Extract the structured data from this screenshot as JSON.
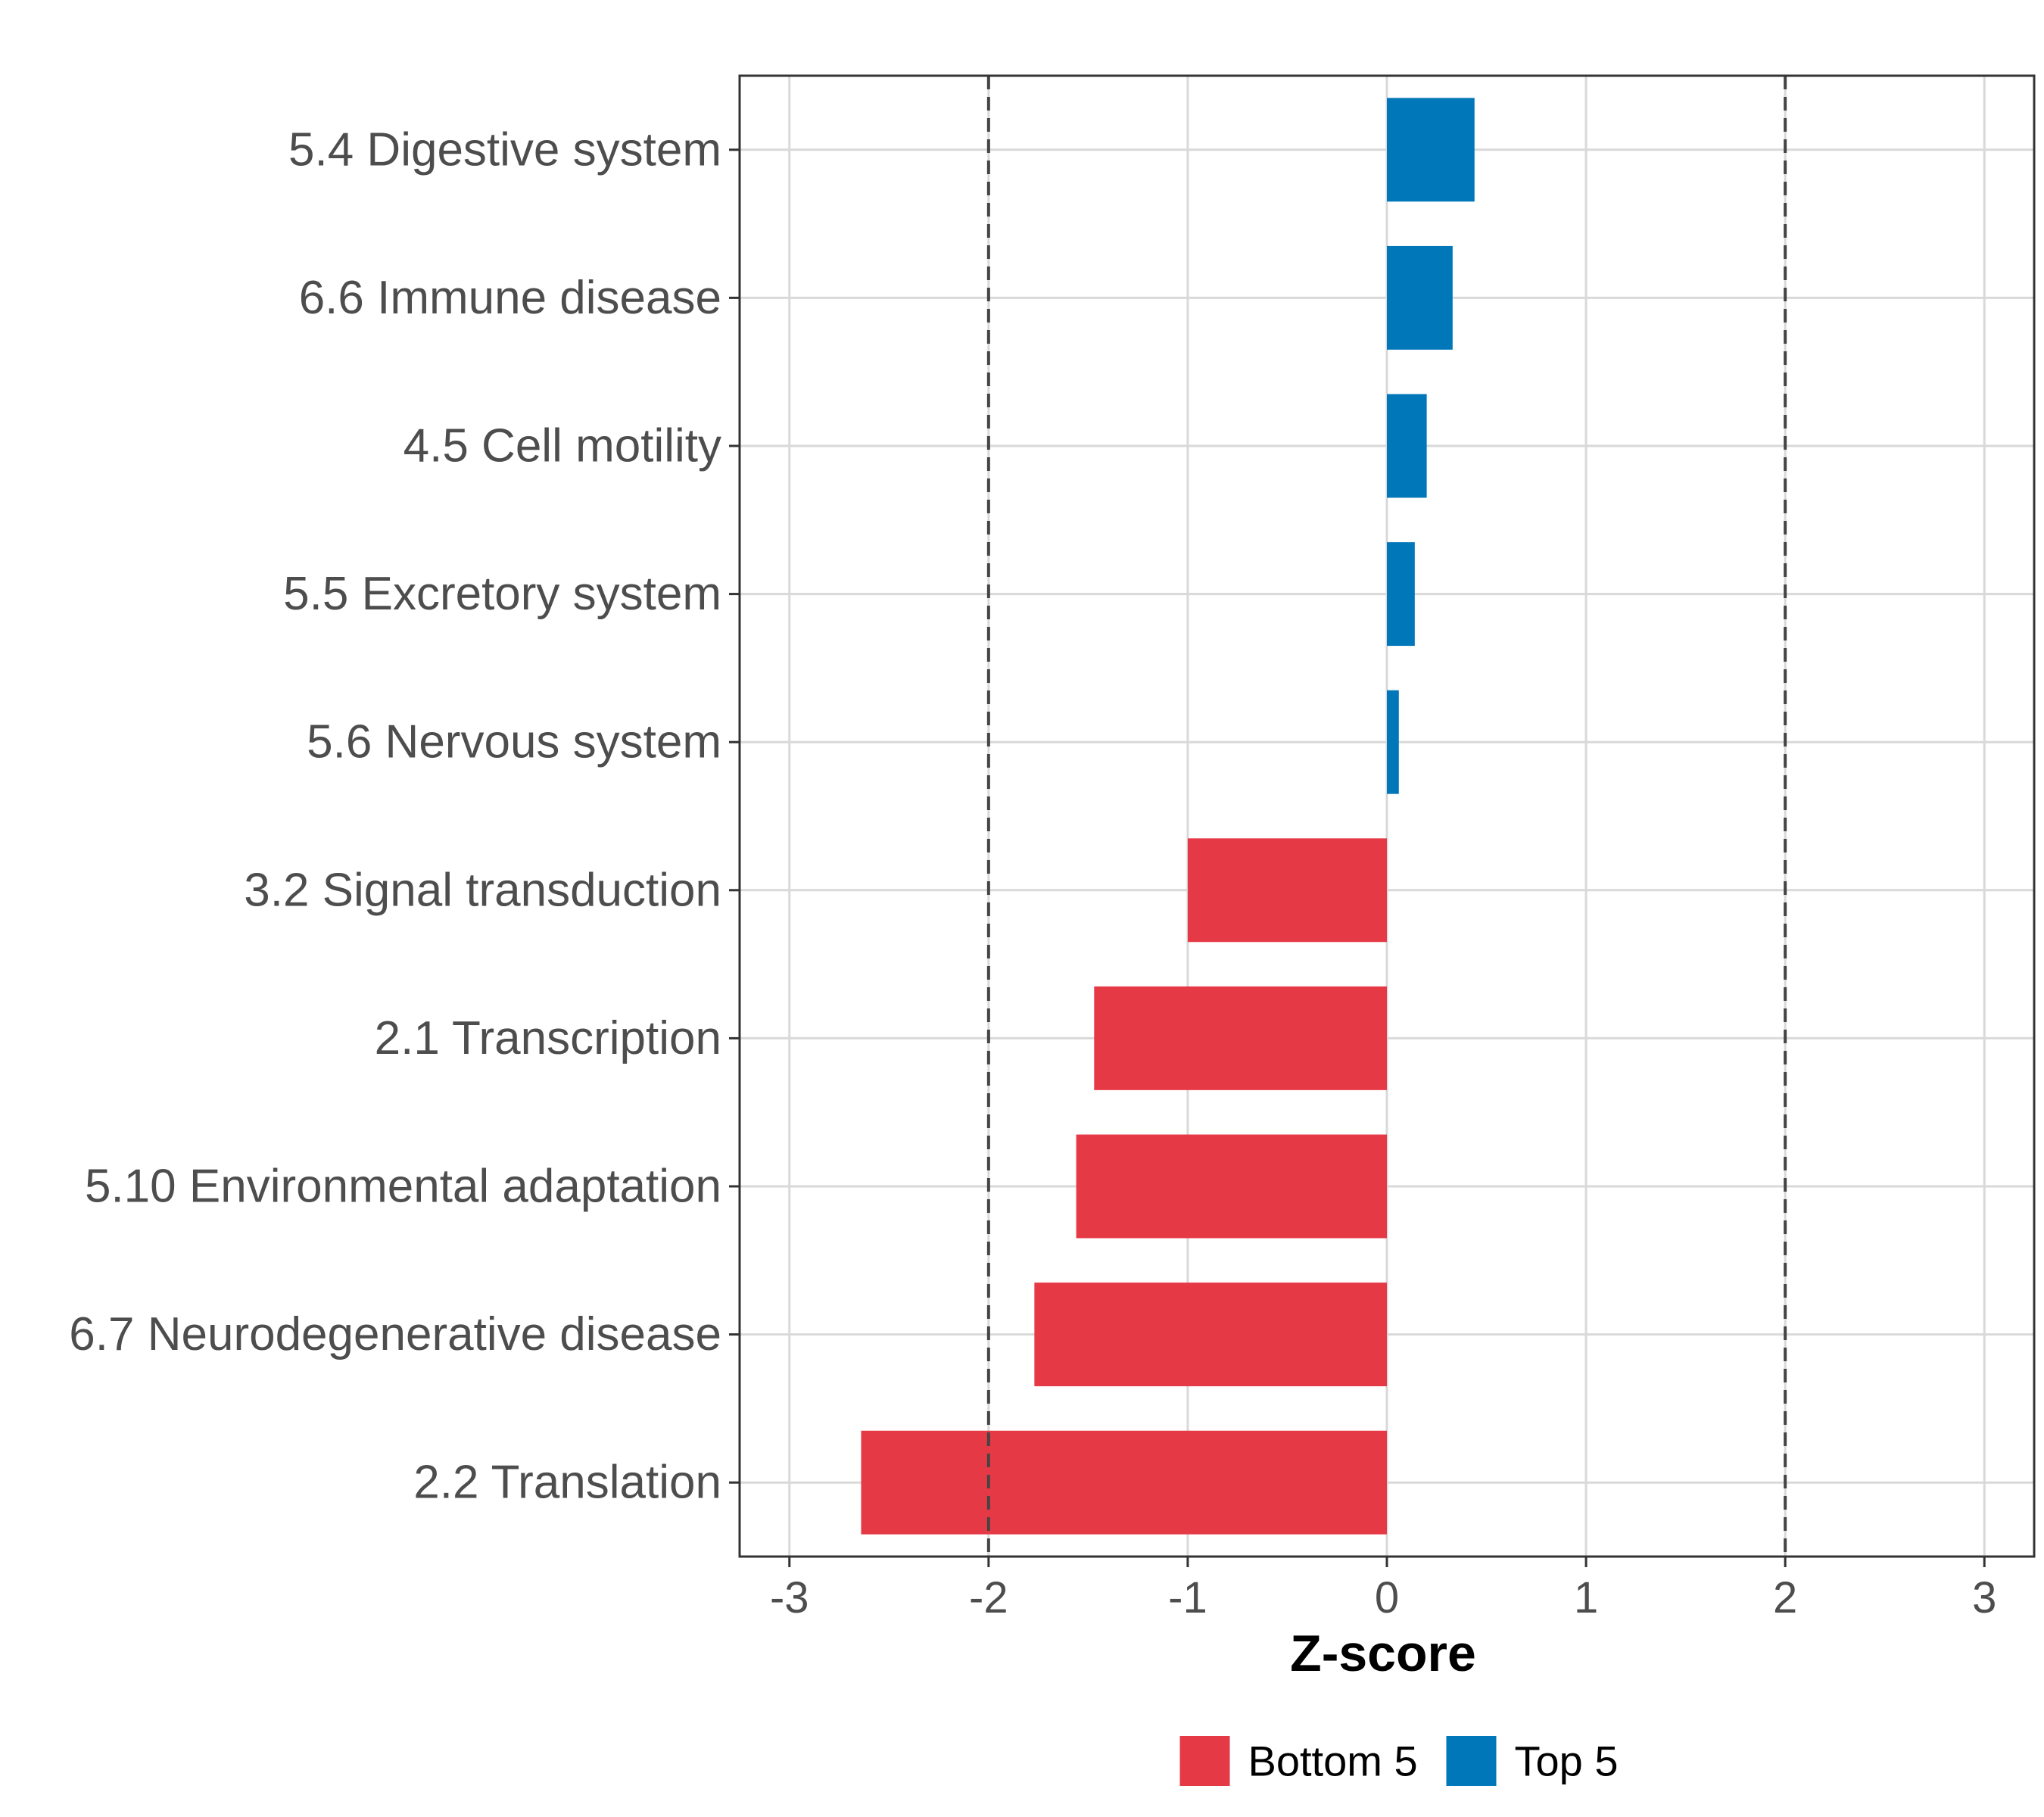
{
  "chart_data": {
    "type": "bar",
    "orientation": "horizontal",
    "title": "",
    "xlabel": "Z-score",
    "ylabel": "",
    "xlim": [
      -3.25,
      3.25
    ],
    "xticks": [
      -3,
      -2,
      -1,
      0,
      1,
      2,
      3
    ],
    "xtick_labels": [
      "-3",
      "-2",
      "-1",
      "0",
      "1",
      "2",
      "3"
    ],
    "reference_lines": [
      -2,
      2
    ],
    "grid": true,
    "legend_position": "bottom",
    "categories": [
      "5.4 Digestive system",
      "6.6 Immune disease",
      "4.5 Cell motility",
      "5.5 Excretory system",
      "5.6 Nervous system",
      "3.2 Signal transduction",
      "2.1 Transcription",
      "5.10 Environmental adaptation",
      "6.7 Neurodegenerative disease",
      "2.2 Translation"
    ],
    "values": [
      0.44,
      0.33,
      0.2,
      0.14,
      0.06,
      -1.0,
      -1.47,
      -1.56,
      -1.77,
      -2.64
    ],
    "groups": [
      "Top 5",
      "Top 5",
      "Top 5",
      "Top 5",
      "Top 5",
      "Bottom 5",
      "Bottom 5",
      "Bottom 5",
      "Bottom 5",
      "Bottom 5"
    ],
    "legend": [
      {
        "label": "Bottom 5",
        "color": "#e63946"
      },
      {
        "label": "Top 5",
        "color": "#0077b8"
      }
    ]
  }
}
